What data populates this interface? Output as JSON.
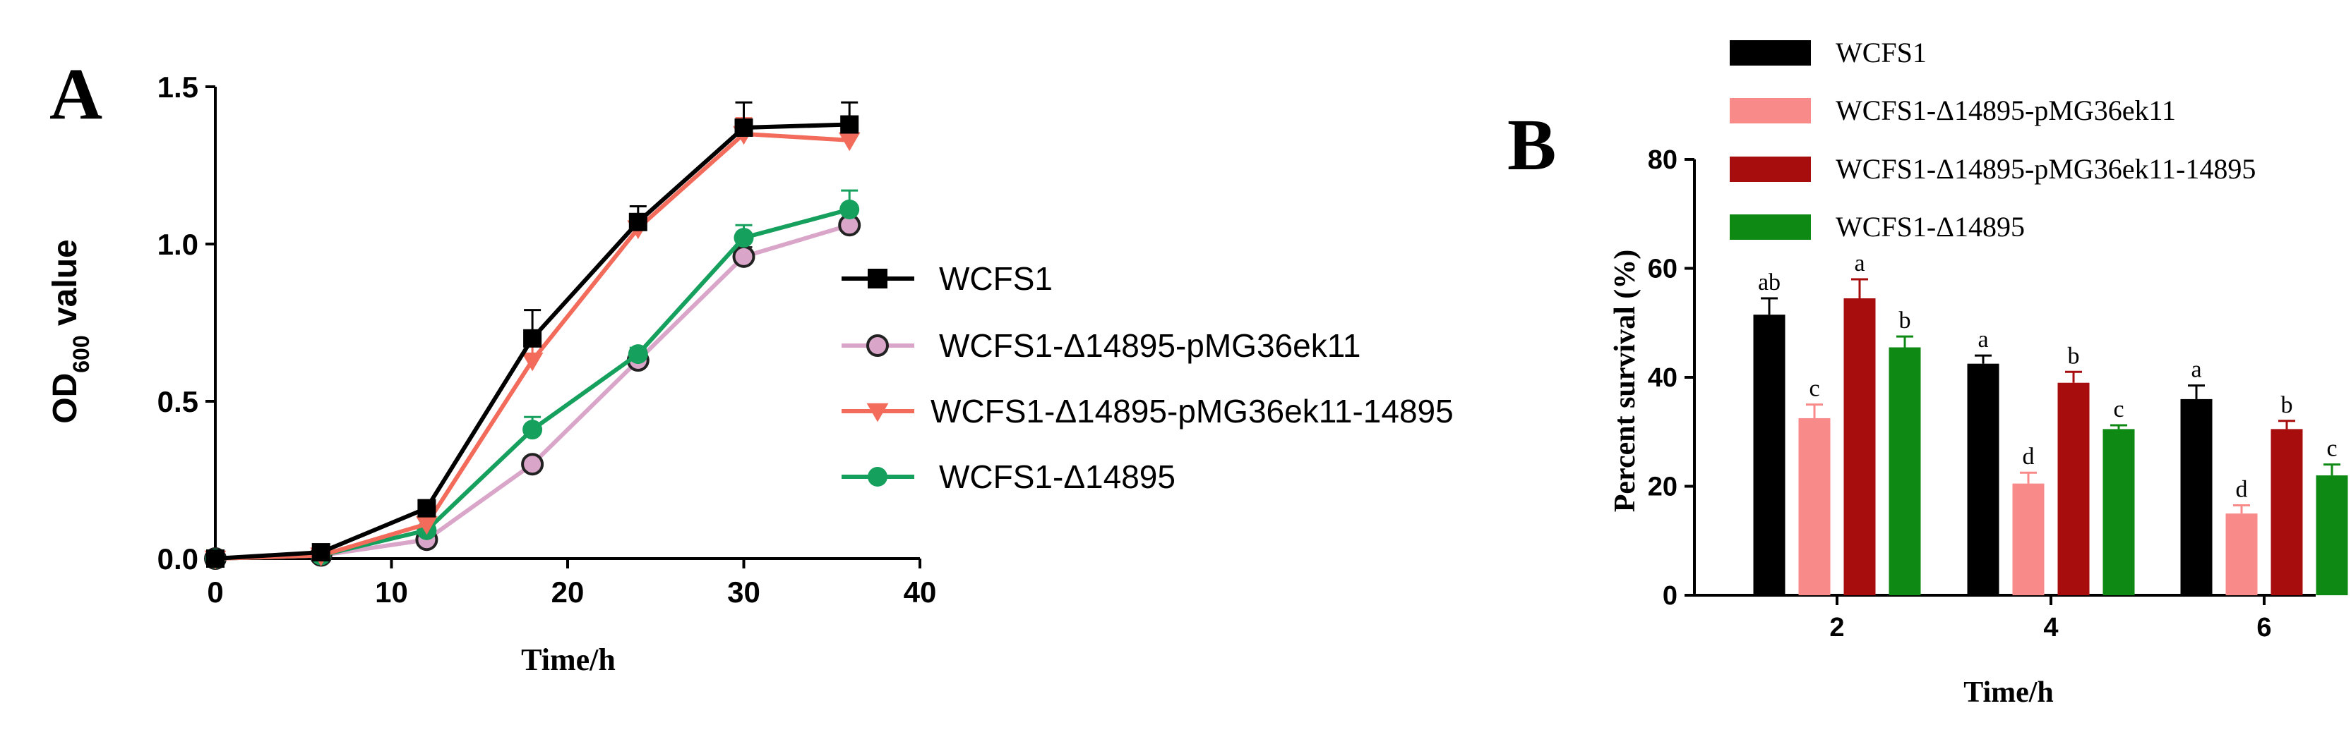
{
  "chart_data": [
    {
      "panel": "A",
      "type": "line",
      "title": "",
      "xlabel": "Time/h",
      "ylabel_main": "OD",
      "ylabel_sub": "600",
      "ylabel_tail": " value",
      "xlim": [
        0,
        40
      ],
      "ylim": [
        0,
        1.5
      ],
      "xticks": [
        0,
        10,
        20,
        30,
        40
      ],
      "yticks": [
        "0.0",
        "0.5",
        "1.0",
        "1.5"
      ],
      "grid": false,
      "legend_position": "right",
      "x": [
        0,
        6,
        12,
        18,
        24,
        30,
        36
      ],
      "series": [
        {
          "name": "WCFS1",
          "color": "#000000",
          "marker": "square",
          "values": [
            0.0,
            0.02,
            0.16,
            0.7,
            1.07,
            1.37,
            1.38
          ],
          "errors": [
            0.0,
            0.01,
            0.02,
            0.09,
            0.05,
            0.08,
            0.07
          ]
        },
        {
          "name": "WCFS1-Δ14895-pMG36ek11",
          "color": "#d9a6c9",
          "marker": "open-circle",
          "values": [
            0.0,
            0.01,
            0.06,
            0.3,
            0.63,
            0.96,
            1.06
          ],
          "errors": [
            0.0,
            0.0,
            0.01,
            0.02,
            0.02,
            0.03,
            0.04
          ]
        },
        {
          "name": "WCFS1-Δ14895-pMG36ek11-14895",
          "color": "#f26b5b",
          "marker": "triangle-down",
          "values": [
            0.0,
            0.01,
            0.11,
            0.63,
            1.05,
            1.35,
            1.33
          ],
          "errors": [
            0.0,
            0.01,
            0.02,
            0.05,
            0.04,
            0.05,
            0.05
          ]
        },
        {
          "name": "WCFS1-Δ14895",
          "color": "#16a05d",
          "marker": "circle",
          "values": [
            0.0,
            0.01,
            0.09,
            0.41,
            0.65,
            1.02,
            1.11
          ],
          "errors": [
            0.0,
            0.0,
            0.01,
            0.04,
            0.02,
            0.04,
            0.06
          ]
        }
      ]
    },
    {
      "panel": "B",
      "type": "bar",
      "title": "",
      "xlabel": "Time/h",
      "ylabel": "Percent survival (%)",
      "ylim": [
        0,
        80
      ],
      "yticks": [
        "0",
        "20",
        "40",
        "60",
        "80"
      ],
      "categories": [
        "2",
        "4",
        "6"
      ],
      "grid": false,
      "legend_position": "top",
      "series": [
        {
          "name": "WCFS1",
          "color": "#000000",
          "values": [
            51.5,
            42.5,
            36.0
          ],
          "errors": [
            3.0,
            1.5,
            2.5
          ],
          "letters": [
            "ab",
            "a",
            "a"
          ]
        },
        {
          "name": "WCFS1-Δ14895-pMG36ek11",
          "color": "#f98a8a",
          "values": [
            32.5,
            20.5,
            15.0
          ],
          "errors": [
            2.5,
            2.0,
            1.5
          ],
          "letters": [
            "c",
            "d",
            "d"
          ]
        },
        {
          "name": "WCFS1-Δ14895-pMG36ek11-14895",
          "color": "#a80d0d",
          "values": [
            54.5,
            39.0,
            30.5
          ],
          "errors": [
            3.5,
            2.0,
            1.5
          ],
          "letters": [
            "a",
            "b",
            "b"
          ]
        },
        {
          "name": "WCFS1-Δ14895",
          "color": "#0e8a14",
          "values": [
            45.5,
            30.5,
            22.0
          ],
          "errors": [
            2.0,
            0.7,
            2.0
          ],
          "letters": [
            "b",
            "c",
            "c"
          ]
        }
      ]
    }
  ]
}
